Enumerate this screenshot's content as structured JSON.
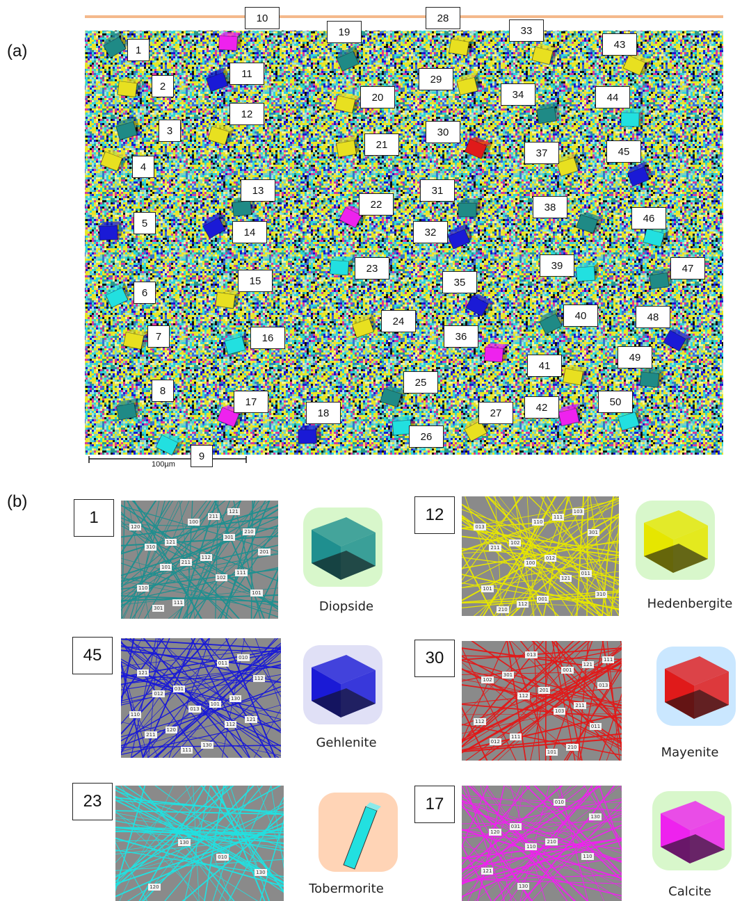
{
  "panel_a": {
    "label": "(a)",
    "scale_bar_text": "100µm",
    "ids": [
      "1",
      "2",
      "3",
      "4",
      "5",
      "6",
      "7",
      "8",
      "9",
      "10",
      "11",
      "12",
      "13",
      "14",
      "15",
      "16",
      "17",
      "18",
      "19",
      "20",
      "21",
      "22",
      "23",
      "24",
      "25",
      "26",
      "27",
      "28",
      "29",
      "30",
      "31",
      "32",
      "33",
      "34",
      "35",
      "36",
      "37",
      "38",
      "39",
      "40",
      "41",
      "42",
      "43",
      "44",
      "45",
      "46",
      "47",
      "48",
      "49",
      "50"
    ]
  },
  "panel_b": {
    "label": "(b)",
    "patterns": [
      {
        "id": "1",
        "mineral": "Diopside",
        "color": "#1f8f8f",
        "indices": [
          "101",
          "201",
          "301",
          "100",
          "301",
          "101",
          "102",
          "211",
          "310",
          "210",
          "211",
          "111",
          "110",
          "111",
          "112",
          "121",
          "120",
          "121"
        ]
      },
      {
        "id": "12",
        "mineral": "Hedenbergite",
        "color": "#e6e600",
        "indices": [
          "110",
          "210",
          "310",
          "121",
          "100",
          "211",
          "301",
          "111",
          "112",
          "101",
          "011",
          "012",
          "102",
          "013",
          "103",
          "001"
        ]
      },
      {
        "id": "45",
        "mineral": "Gehlenite",
        "color": "#1a1ad6",
        "indices": [
          "112",
          "013",
          "012",
          "112",
          "011",
          "111",
          "211",
          "121",
          "101",
          "031",
          "121",
          "010",
          "130",
          "120",
          "110",
          "130"
        ]
      },
      {
        "id": "30",
        "mineral": "Mayenite",
        "color": "#e01a1a",
        "indices": [
          "013",
          "001",
          "013",
          "012",
          "011",
          "103",
          "112",
          "102",
          "121",
          "101",
          "111",
          "112",
          "211",
          "201",
          "301",
          "111",
          "210"
        ]
      },
      {
        "id": "23",
        "mineral": "Tobermorite",
        "color": "#22e0e0",
        "indices": [
          "120",
          "130",
          "010",
          "130"
        ]
      },
      {
        "id": "17",
        "mineral": "Calcite",
        "color": "#ee22ee",
        "indices": [
          "110",
          "120",
          "130",
          "010",
          "130",
          "121",
          "110",
          "210",
          "031"
        ]
      }
    ]
  }
}
